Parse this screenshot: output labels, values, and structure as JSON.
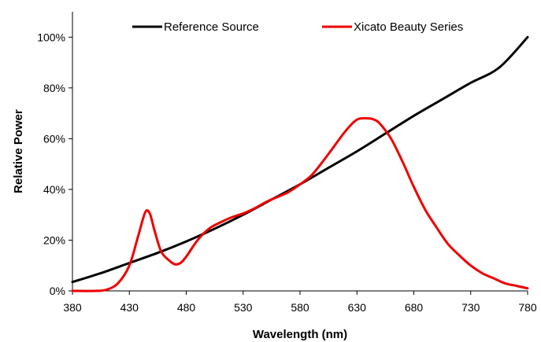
{
  "chart_data": {
    "type": "line",
    "xlabel": "Wavelength (nm)",
    "ylabel": "Relative Power",
    "xlim": [
      380,
      780
    ],
    "ylim": [
      0,
      1.1
    ],
    "x_ticks": [
      380,
      430,
      480,
      530,
      580,
      630,
      680,
      730,
      780
    ],
    "y_ticks": [
      0,
      0.2,
      0.4,
      0.6,
      0.8,
      1.0
    ],
    "y_tick_labels": [
      "0%",
      "20%",
      "40%",
      "60%",
      "80%",
      "100%"
    ],
    "x_tick_labels": [
      "380",
      "430",
      "480",
      "530",
      "580",
      "630",
      "680",
      "730",
      "780"
    ],
    "grid": false,
    "legend_placement": "top",
    "series": [
      {
        "name": "Reference Source",
        "color": "#000000",
        "x": [
          380,
          405,
          430,
          455,
          480,
          505,
          530,
          555,
          580,
          605,
          630,
          655,
          680,
          705,
          730,
          755,
          780
        ],
        "y": [
          0.035,
          0.07,
          0.11,
          0.15,
          0.195,
          0.245,
          0.3,
          0.36,
          0.42,
          0.485,
          0.55,
          0.62,
          0.69,
          0.755,
          0.82,
          0.88,
          1.0
        ]
      },
      {
        "name": "Xicato Beauty Series",
        "color": "#ee0000",
        "x": [
          380,
          400,
          410,
          420,
          430,
          438,
          444,
          448,
          452,
          458,
          465,
          470,
          475,
          480,
          490,
          500,
          510,
          520,
          530,
          540,
          550,
          560,
          570,
          580,
          590,
          600,
          610,
          620,
          630,
          640,
          645,
          650,
          660,
          670,
          680,
          690,
          700,
          710,
          720,
          730,
          740,
          750,
          760,
          770,
          780
        ],
        "y": [
          0,
          0,
          0.005,
          0.03,
          0.1,
          0.22,
          0.31,
          0.305,
          0.24,
          0.155,
          0.12,
          0.105,
          0.11,
          0.135,
          0.2,
          0.245,
          0.27,
          0.29,
          0.305,
          0.325,
          0.35,
          0.37,
          0.39,
          0.42,
          0.455,
          0.51,
          0.57,
          0.63,
          0.675,
          0.68,
          0.675,
          0.66,
          0.6,
          0.51,
          0.41,
          0.32,
          0.25,
          0.185,
          0.14,
          0.1,
          0.07,
          0.05,
          0.03,
          0.02,
          0.01
        ]
      }
    ]
  }
}
